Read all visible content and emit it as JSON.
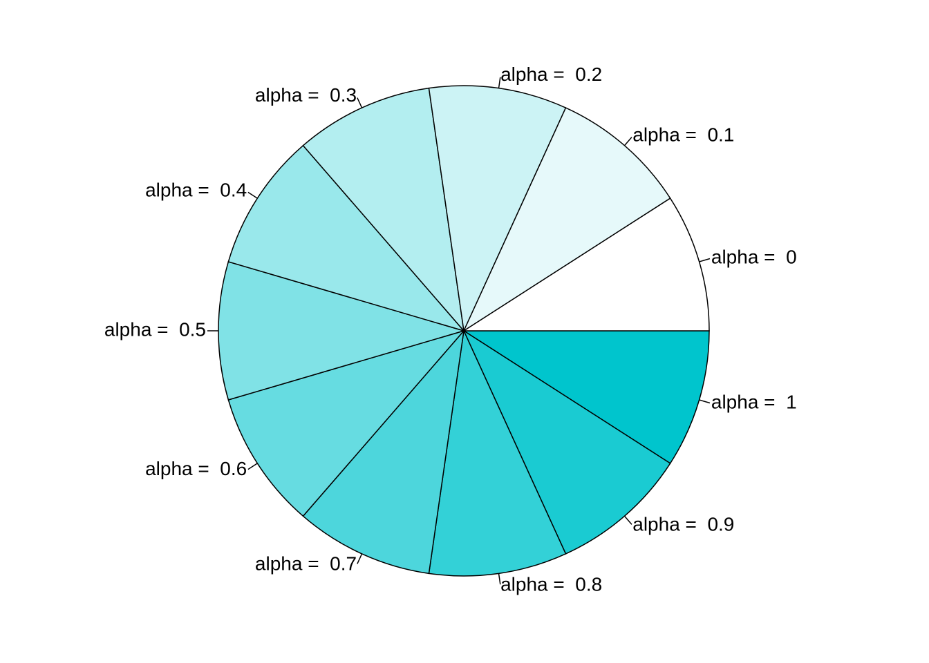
{
  "chart_data": {
    "type": "pie",
    "title": "",
    "direction": "clockwise",
    "start": "3 o'clock",
    "base_color": "#00C5CD",
    "slices": [
      {
        "label": "alpha =  1",
        "value": 1,
        "alpha": 1.0
      },
      {
        "label": "alpha =  0.9",
        "value": 1,
        "alpha": 0.9
      },
      {
        "label": "alpha =  0.8",
        "value": 1,
        "alpha": 0.8
      },
      {
        "label": "alpha =  0.7",
        "value": 1,
        "alpha": 0.7
      },
      {
        "label": "alpha =  0.6",
        "value": 1,
        "alpha": 0.6
      },
      {
        "label": "alpha =  0.5",
        "value": 1,
        "alpha": 0.5
      },
      {
        "label": "alpha =  0.4",
        "value": 1,
        "alpha": 0.4
      },
      {
        "label": "alpha =  0.3",
        "value": 1,
        "alpha": 0.3
      },
      {
        "label": "alpha =  0.2",
        "value": 1,
        "alpha": 0.2
      },
      {
        "label": "alpha =  0.1",
        "value": 1,
        "alpha": 0.1
      },
      {
        "label": "alpha =  0",
        "value": 1,
        "alpha": 0.0
      }
    ]
  }
}
